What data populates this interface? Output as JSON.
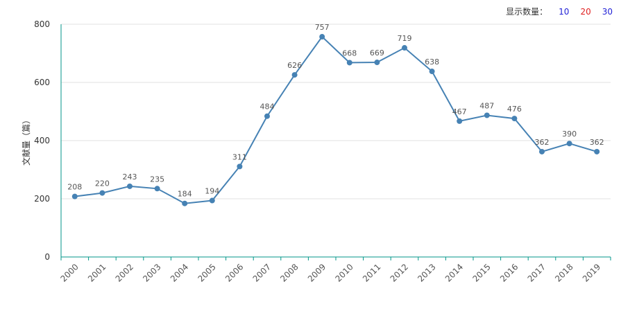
{
  "display_control": {
    "label": "显示数量：",
    "options": [
      {
        "text": "10",
        "color": "#1f1fd6"
      },
      {
        "text": "20",
        "color": "#e02020"
      },
      {
        "text": "30",
        "color": "#1f1fd6"
      }
    ]
  },
  "colors": {
    "line": "#4682b4",
    "point": "#4682b4",
    "axis": "#009688",
    "grid": "#e0e0e0"
  },
  "chart_data": {
    "type": "line",
    "title": "",
    "xlabel": "",
    "ylabel": "文献量（篇）",
    "ylim": [
      0,
      800
    ],
    "yticks": [
      0,
      200,
      400,
      600,
      800
    ],
    "categories": [
      "2000",
      "2001",
      "2002",
      "2003",
      "2004",
      "2005",
      "2006",
      "2007",
      "2008",
      "2009",
      "2010",
      "2011",
      "2012",
      "2013",
      "2014",
      "2015",
      "2016",
      "2017",
      "2018",
      "2019"
    ],
    "series": [
      {
        "name": "文献量",
        "values": [
          208,
          220,
          243,
          235,
          184,
          194,
          311,
          484,
          626,
          757,
          668,
          669,
          719,
          638,
          467,
          487,
          476,
          362,
          390,
          362
        ]
      }
    ]
  }
}
